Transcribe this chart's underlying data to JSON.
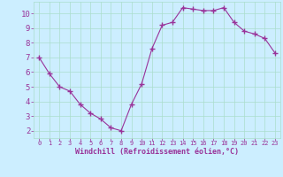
{
  "x": [
    0,
    1,
    2,
    3,
    4,
    5,
    6,
    7,
    8,
    9,
    10,
    11,
    12,
    13,
    14,
    15,
    16,
    17,
    18,
    19,
    20,
    21,
    22,
    23
  ],
  "y": [
    7.0,
    5.9,
    5.0,
    4.7,
    3.8,
    3.2,
    2.8,
    2.2,
    2.0,
    3.8,
    5.2,
    7.6,
    9.2,
    9.4,
    10.4,
    10.3,
    10.2,
    10.2,
    10.4,
    9.4,
    8.8,
    8.6,
    8.3,
    7.3
  ],
  "line_color": "#993399",
  "marker": "+",
  "marker_size": 4,
  "bg_color": "#cceeff",
  "grid_color": "#aaddcc",
  "xlabel": "Windchill (Refroidissement éolien,°C)",
  "xlabel_color": "#993399",
  "tick_color": "#993399",
  "xlim": [
    -0.5,
    23.5
  ],
  "ylim": [
    1.5,
    10.8
  ],
  "yticks": [
    2,
    3,
    4,
    5,
    6,
    7,
    8,
    9,
    10
  ],
  "xticks": [
    0,
    1,
    2,
    3,
    4,
    5,
    6,
    7,
    8,
    9,
    10,
    11,
    12,
    13,
    14,
    15,
    16,
    17,
    18,
    19,
    20,
    21,
    22,
    23
  ],
  "xticklabels": [
    "0",
    "1",
    "2",
    "3",
    "4",
    "5",
    "6",
    "7",
    "8",
    "9",
    "10",
    "11",
    "12",
    "13",
    "14",
    "15",
    "16",
    "17",
    "18",
    "19",
    "20",
    "21",
    "22",
    "23"
  ]
}
